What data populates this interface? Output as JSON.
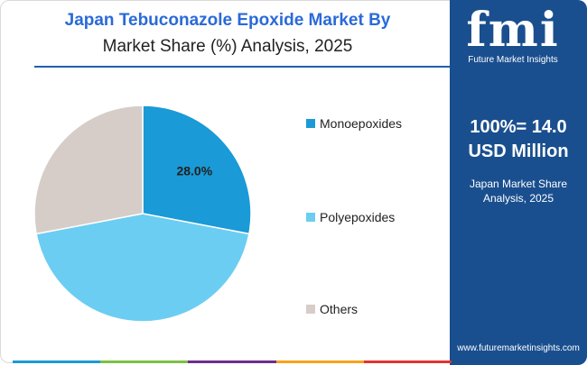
{
  "header": {
    "title_line1": "Japan Tebuconazole Epoxide Market By",
    "title_line2": "Market Share (%) Analysis, 2025"
  },
  "sidebar": {
    "logo_text": "fmi",
    "logo_subtitle": "Future Market Insights",
    "total_line1": "100%= 14.0",
    "total_line2": "USD Million",
    "subtitle_line1": "Japan Market Share",
    "subtitle_line2": "Analysis, 2025",
    "website": "www.futuremarketinsights.com"
  },
  "chart_data": {
    "type": "pie",
    "title": "Japan Tebuconazole Epoxide Market By Market Share (%) Analysis, 2025",
    "slices": [
      {
        "label": "Monoepoxides",
        "value": 28.0,
        "color": "#1a9ad6",
        "data_label": "28.0%"
      },
      {
        "label": "Polyepoxides",
        "value": 44.0,
        "color": "#6ccdf2",
        "data_label": ""
      },
      {
        "label": "Others",
        "value": 28.0,
        "color": "#d6cdc8",
        "data_label": ""
      }
    ],
    "legend_position": "right"
  },
  "colors": {
    "title_accent": "#2a6ad8",
    "sidebar_bg": "#1a4f8f",
    "bottom_bar": [
      "#1a9ad6",
      "#7ac143",
      "#6c2d91",
      "#f7a21b",
      "#e5322d"
    ]
  }
}
